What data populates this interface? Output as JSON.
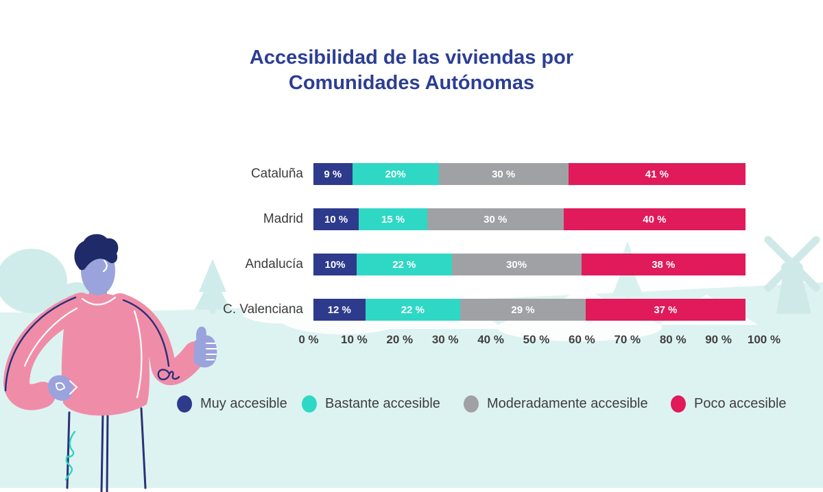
{
  "title": {
    "line1": "Accesibilidad de las viviendas por",
    "line2": "Comunidades Autónomas"
  },
  "chart_data": {
    "type": "bar",
    "orientation": "horizontal",
    "stacked": true,
    "unit": "%",
    "title": "Accesibilidad de las viviendas por Comunidades Autónomas",
    "categories": [
      "Cataluña",
      "Madrid",
      "Andalucía",
      "C. Valenciana"
    ],
    "series": [
      {
        "name": "Muy accesible",
        "color": "#2e3a8c",
        "values": [
          9,
          10,
          10,
          12
        ]
      },
      {
        "name": "Bastante accesible",
        "color": "#2fd8c5",
        "values": [
          20,
          15,
          22,
          22
        ]
      },
      {
        "name": "Moderadamente accesible",
        "color": "#a0a1a4",
        "values": [
          30,
          30,
          30,
          29
        ]
      },
      {
        "name": "Poco accesible",
        "color": "#e01a5b",
        "values": [
          41,
          40,
          38,
          37
        ]
      }
    ],
    "segment_labels": [
      [
        "9 %",
        "20%",
        "30 %",
        "41 %"
      ],
      [
        "10 %",
        "15 %",
        "30 %",
        "40 %"
      ],
      [
        "10%",
        "22 %",
        "30%",
        "38 %"
      ],
      [
        "12 %",
        "22 %",
        "29 %",
        "37 %"
      ]
    ],
    "x_ticks": [
      "0 %",
      "10 %",
      "20 %",
      "30 %",
      "40 %",
      "50 %",
      "60 %",
      "70 %",
      "80 %",
      "90 %",
      "100 %"
    ],
    "xlim": [
      0,
      100
    ],
    "grid": false,
    "legend_position": "bottom"
  },
  "legend": {
    "items": [
      {
        "label": "Muy accesible",
        "color": "#2e3a8c"
      },
      {
        "label": "Bastante accesible",
        "color": "#2fd8c5"
      },
      {
        "label": "Moderadamente accesible",
        "color": "#a0a1a4"
      },
      {
        "label": "Poco accesible",
        "color": "#e01a5b"
      }
    ]
  },
  "colors": {
    "title": "#2c3e94",
    "axis_text": "#3f3f3f",
    "category_text": "#3b3b3b",
    "segment_label_text": "#ffffff",
    "legend_text": "#3d3d3d",
    "background": "#ffffff",
    "band": "#ddf3f1",
    "silhouette": "#cfeceb",
    "illustration": {
      "skin": "#9aa3dc",
      "hair": "#1f2a68",
      "sweater": "#ef8da9",
      "outline": "#2a3175",
      "squiggle": "#2bd4c0"
    }
  },
  "decor": {
    "person": "person-thumbs-up",
    "scenery": [
      "round-trees",
      "pine-tree",
      "house-roofs",
      "windmill"
    ]
  },
  "layout": {
    "row_tops": [
      0,
      66,
      132,
      198
    ],
    "legend_item_lefts": [
      0,
      182,
      418,
      720
    ]
  }
}
